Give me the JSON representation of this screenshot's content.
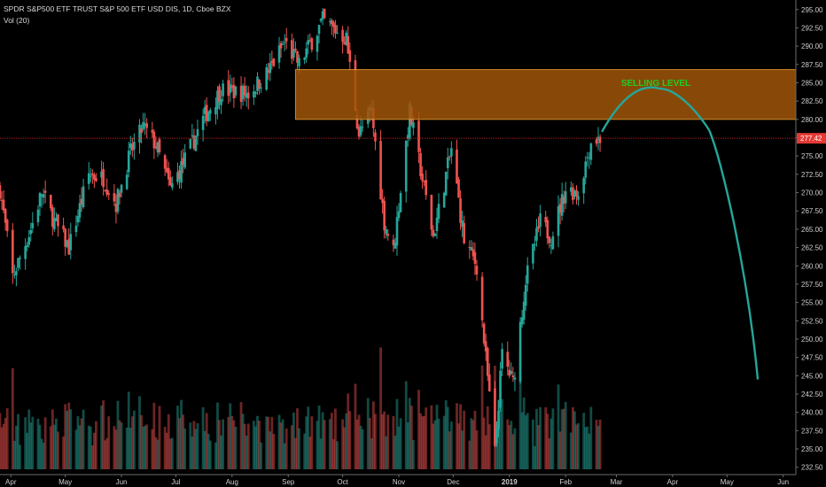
{
  "header": {
    "symbol_line": "SPDR S&P500 ETF TRUST S&P 500 ETF USD DIS, 1D, Cboe BZX",
    "volume_line": "Vol (20)"
  },
  "colors": {
    "background": "#000000",
    "up_candle": "#26a69a",
    "down_candle": "#ef5350",
    "selling_zone": "#a0560a",
    "selling_zone_border": "#f0a030",
    "annotation_text": "#22cc22",
    "projection_curve": "#26a69a",
    "price_line": "#b02020",
    "price_label_bg": "#e53935"
  },
  "chart_data": {
    "type": "candlestick",
    "y_axis": {
      "ticks": [
        "295.00",
        "292.50",
        "290.00",
        "287.50",
        "285.00",
        "282.50",
        "280.00",
        "277.50",
        "275.00",
        "272.50",
        "270.00",
        "267.50",
        "265.00",
        "262.50",
        "260.00",
        "257.50",
        "255.00",
        "252.50",
        "250.00",
        "247.50",
        "245.00",
        "242.50",
        "240.00",
        "237.50",
        "235.00",
        "232.50"
      ],
      "range": [
        231.5,
        296.3
      ]
    },
    "x_axis": {
      "ticks": [
        "Apr",
        "May",
        "Jun",
        "Jul",
        "Aug",
        "Sep",
        "Oct",
        "Nov",
        "Dec",
        "2019",
        "Feb",
        "Mar",
        "Apr",
        "May",
        "Jun"
      ],
      "range_dates": [
        "2018-03-26",
        "2019-06-08"
      ]
    },
    "last_price": {
      "value": 277.42,
      "label": "277.42"
    },
    "selling_zone": {
      "label": "SELLING LEVEL",
      "price_low": 280.0,
      "price_high": 286.8,
      "date_start": "2018-09-05"
    },
    "projection": {
      "description_points": [
        {
          "date": "2019-02-21",
          "price": 278.3
        },
        {
          "date": "2019-03-25",
          "price": 284.2
        },
        {
          "date": "2019-04-22",
          "price": 278.0
        },
        {
          "date": "2019-05-12",
          "price": 260.0
        },
        {
          "date": "2019-05-18",
          "price": 244.5
        }
      ]
    },
    "price_path": [
      {
        "date": "2018-03-26",
        "price": 270.5
      },
      {
        "date": "2018-04-02",
        "price": 258.5
      },
      {
        "date": "2018-04-12",
        "price": 265.0
      },
      {
        "date": "2018-04-18",
        "price": 270.0
      },
      {
        "date": "2018-04-26",
        "price": 265.5
      },
      {
        "date": "2018-05-03",
        "price": 262.5
      },
      {
        "date": "2018-05-14",
        "price": 272.5
      },
      {
        "date": "2018-05-22",
        "price": 272.0
      },
      {
        "date": "2018-05-29",
        "price": 268.5
      },
      {
        "date": "2018-06-06",
        "price": 275.5
      },
      {
        "date": "2018-06-13",
        "price": 279.0
      },
      {
        "date": "2018-06-20",
        "price": 276.5
      },
      {
        "date": "2018-06-28",
        "price": 270.5
      },
      {
        "date": "2018-07-05",
        "price": 274.0
      },
      {
        "date": "2018-07-17",
        "price": 280.5
      },
      {
        "date": "2018-07-26",
        "price": 284.0
      },
      {
        "date": "2018-08-10",
        "price": 283.5
      },
      {
        "date": "2018-08-21",
        "price": 286.5
      },
      {
        "date": "2018-08-30",
        "price": 290.5
      },
      {
        "date": "2018-09-07",
        "price": 287.5
      },
      {
        "date": "2018-09-20",
        "price": 293.5
      },
      {
        "date": "2018-10-03",
        "price": 291.0
      },
      {
        "date": "2018-10-10",
        "price": 278.0
      },
      {
        "date": "2018-10-17",
        "price": 281.0
      },
      {
        "date": "2018-10-24",
        "price": 266.0
      },
      {
        "date": "2018-10-29",
        "price": 262.0
      },
      {
        "date": "2018-11-07",
        "price": 281.0
      },
      {
        "date": "2018-11-20",
        "price": 264.0
      },
      {
        "date": "2018-11-30",
        "price": 276.0
      },
      {
        "date": "2018-12-07",
        "price": 263.5
      },
      {
        "date": "2018-12-14",
        "price": 260.0
      },
      {
        "date": "2018-12-24",
        "price": 234.5
      },
      {
        "date": "2018-12-28",
        "price": 248.0
      },
      {
        "date": "2019-01-03",
        "price": 244.0
      },
      {
        "date": "2019-01-10",
        "price": 258.0
      },
      {
        "date": "2019-01-18",
        "price": 266.0
      },
      {
        "date": "2019-01-24",
        "price": 264.0
      },
      {
        "date": "2019-02-01",
        "price": 270.5
      },
      {
        "date": "2019-02-08",
        "price": 270.0
      },
      {
        "date": "2019-02-15",
        "price": 277.0
      },
      {
        "date": "2019-02-20",
        "price": 277.4
      }
    ]
  }
}
